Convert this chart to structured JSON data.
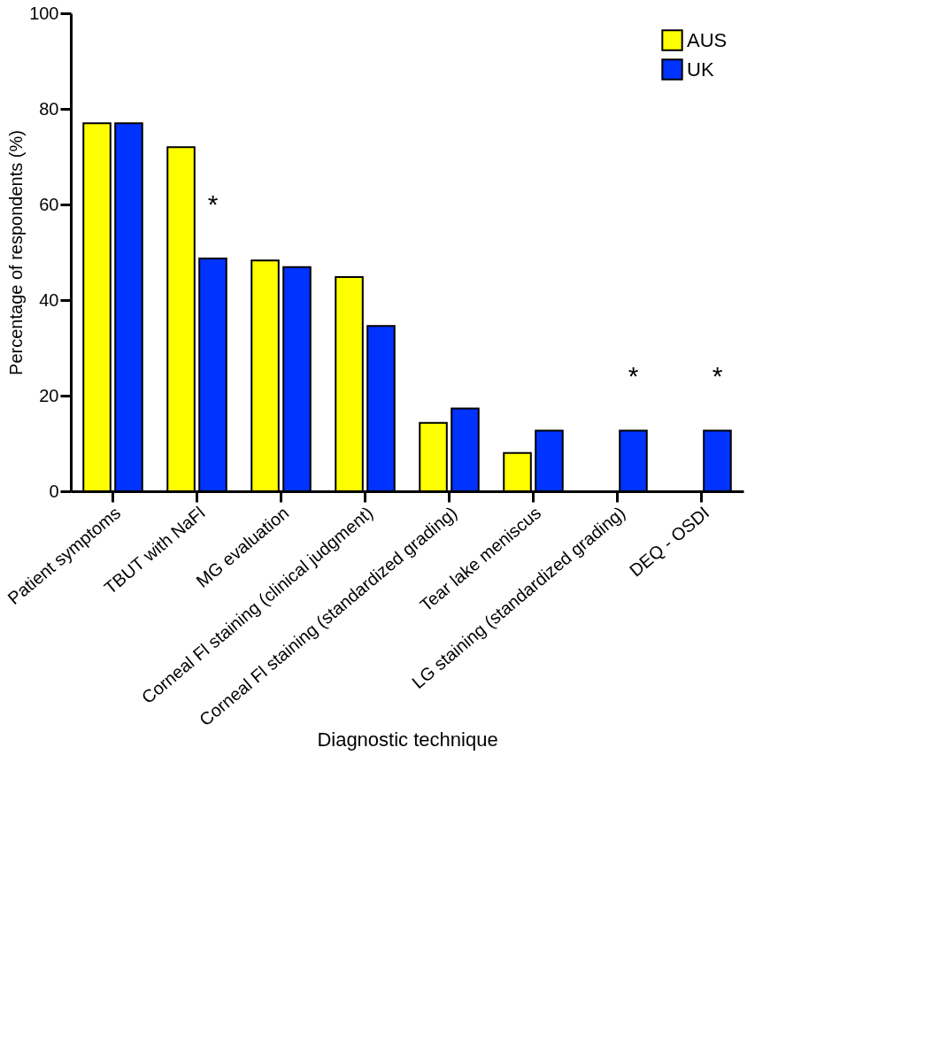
{
  "chart_data": {
    "type": "bar",
    "xlabel": "Diagnostic technique",
    "ylabel": "Percentage of respondents (%)",
    "categories": [
      "Patient symptoms",
      "TBUT with NaFl",
      "MG evaluation",
      "Corneal Fl staining (clinical judgment)",
      "Corneal Fl staining (standardized grading)",
      "Tear lake meniscus",
      "LG staining (standardized grading)",
      "DEQ - OSDI"
    ],
    "series": [
      {
        "name": "AUS",
        "color": "#ffff00",
        "values": [
          77,
          72,
          48.3,
          44.8,
          14.3,
          8,
          0,
          0
        ]
      },
      {
        "name": "UK",
        "color": "#0033ff",
        "values": [
          77,
          48.7,
          46.9,
          34.6,
          17.3,
          12.7,
          12.7,
          12.7
        ]
      }
    ],
    "ylim": [
      0,
      100
    ],
    "yticks": [
      0,
      20,
      40,
      60,
      80,
      100
    ],
    "grid": false,
    "legend": "top right",
    "annotations": [
      {
        "text": "*",
        "x": "TBUT with NaFl",
        "y": 48.7
      },
      {
        "text": "*",
        "x": "LG staining (standardized grading)",
        "y": 12.7
      },
      {
        "text": "*",
        "x": "DEQ - OSDI",
        "y": 12.7
      }
    ]
  }
}
